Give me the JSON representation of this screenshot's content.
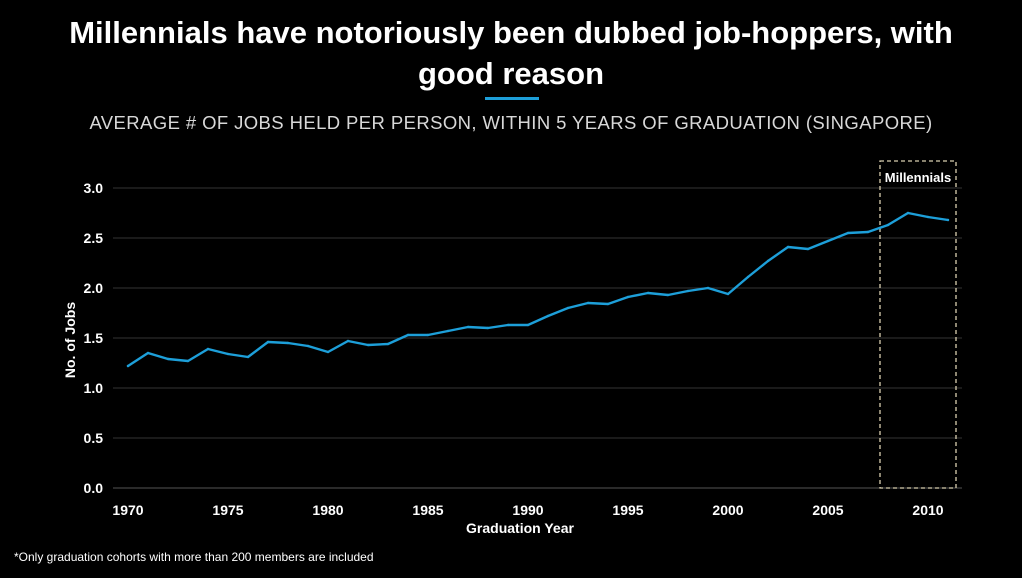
{
  "header": {
    "title_line1": "Millennials have notoriously been dubbed job-hoppers, with",
    "title_line2": "good reason",
    "subtitle": "AVERAGE # OF JOBS HELD PER PERSON, WITHIN 5 YEARS OF GRADUATION (SINGAPORE)"
  },
  "footnote": "*Only graduation cohorts with more than 200 members are included",
  "colors": {
    "background": "#000000",
    "line": "#1d9fd9",
    "accent_rule": "#1d9fd9",
    "gridline": "#333333",
    "highlight_box": "#d9cfb0"
  },
  "chart_data": {
    "type": "line",
    "title": "AVERAGE # OF JOBS HELD PER PERSON, WITHIN 5 YEARS OF GRADUATION (SINGAPORE)",
    "xlabel": "Graduation Year",
    "ylabel": "No. of Jobs",
    "xlim": [
      1970,
      2011
    ],
    "ylim": [
      0,
      3.0
    ],
    "x_ticks": [
      1970,
      1975,
      1980,
      1985,
      1990,
      1995,
      2000,
      2005,
      2010
    ],
    "y_ticks": [
      "0.0",
      "0.5",
      "1.0",
      "1.5",
      "2.0",
      "2.5",
      "3.0"
    ],
    "grid": "horizontal",
    "series": [
      {
        "x": [
          1970,
          1971,
          1972,
          1973,
          1974,
          1975,
          1976,
          1977,
          1978,
          1979,
          1980,
          1981,
          1982,
          1983,
          1984,
          1985,
          1986,
          1987,
          1988,
          1989,
          1990,
          1991,
          1992,
          1993,
          1994,
          1995,
          1996,
          1997,
          1998,
          1999,
          2000,
          2001,
          2002,
          2003,
          2004,
          2005,
          2006,
          2007,
          2008,
          2009,
          2010,
          2011
        ],
        "values": [
          1.22,
          1.35,
          1.29,
          1.27,
          1.39,
          1.34,
          1.31,
          1.46,
          1.45,
          1.42,
          1.36,
          1.47,
          1.43,
          1.44,
          1.53,
          1.53,
          1.57,
          1.61,
          1.6,
          1.63,
          1.63,
          1.72,
          1.8,
          1.85,
          1.84,
          1.91,
          1.95,
          1.93,
          1.97,
          2.0,
          1.94,
          2.11,
          2.27,
          2.41,
          2.39,
          2.47,
          2.55,
          2.56,
          2.63,
          2.75,
          2.71,
          2.68
        ]
      }
    ],
    "annotations": [
      {
        "label": "Millennials",
        "x_start": 2007.6,
        "x_end": 2011.4,
        "style": "dashed-box"
      }
    ]
  }
}
